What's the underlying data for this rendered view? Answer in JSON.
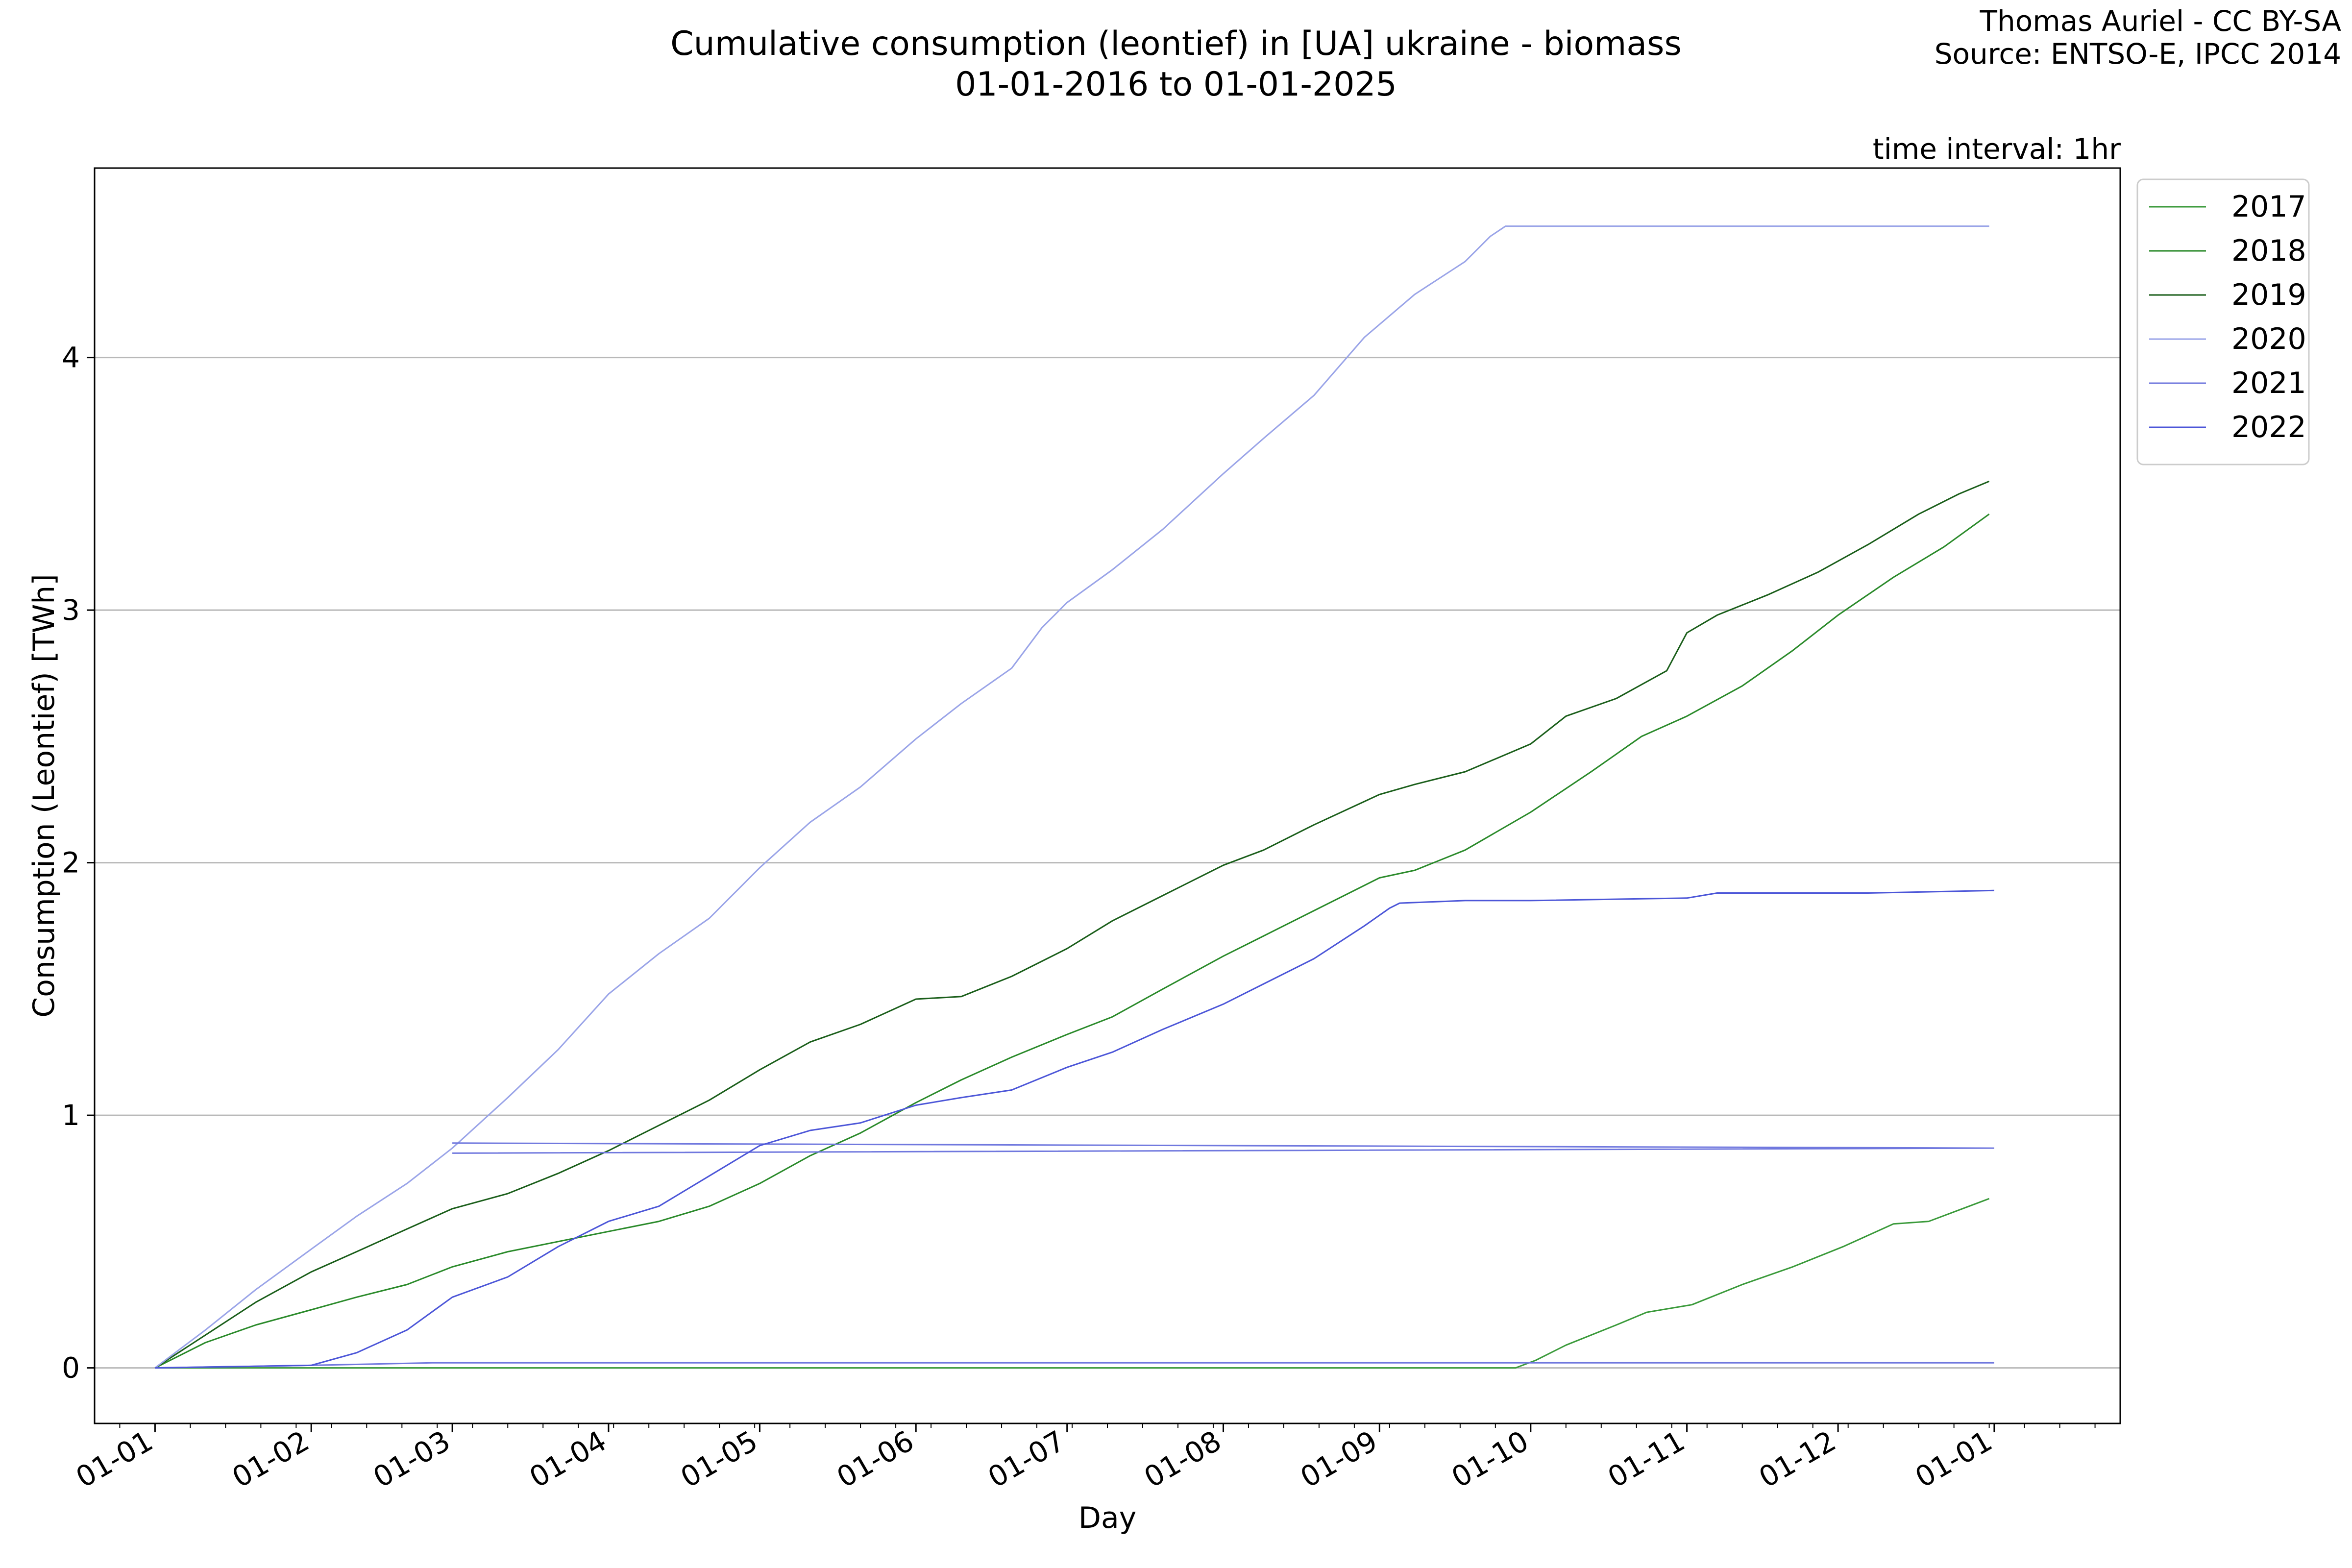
{
  "header": {
    "title": "Cumulative consumption (leontief) in [UA] ukraine - biomass",
    "subtitle": "01-01-2016 to 01-01-2025",
    "credit": "Thomas Auriel - CC BY-SA",
    "source": "Source: ENTSO-E, IPCC 2014",
    "interval": "time interval: 1hr"
  },
  "chart_data": {
    "type": "line",
    "xlabel": "Day",
    "ylabel": "Consumption (Leontief) [TWh]",
    "x_unit": "day_of_year",
    "xlim": [
      -12,
      390
    ],
    "ylim": [
      -0.22,
      4.75
    ],
    "grid": "horizontal",
    "legend_position": "outside-top-right",
    "x_ticks": [
      {
        "label": "01-01",
        "value": 0
      },
      {
        "label": "01-02",
        "value": 31
      },
      {
        "label": "01-03",
        "value": 59
      },
      {
        "label": "01-04",
        "value": 90
      },
      {
        "label": "01-05",
        "value": 120
      },
      {
        "label": "01-06",
        "value": 151
      },
      {
        "label": "01-07",
        "value": 181
      },
      {
        "label": "01-08",
        "value": 212
      },
      {
        "label": "01-09",
        "value": 243
      },
      {
        "label": "01-10",
        "value": 273
      },
      {
        "label": "01-11",
        "value": 304
      },
      {
        "label": "01-12",
        "value": 334
      },
      {
        "label": "01-01",
        "value": 365
      }
    ],
    "y_ticks": [
      0,
      1,
      2,
      3,
      4
    ],
    "series": [
      {
        "name": "2017",
        "color": "#3a9a3a",
        "points": [
          [
            0,
            0
          ],
          [
            270,
            0
          ],
          [
            274,
            0.03
          ],
          [
            280,
            0.09
          ],
          [
            290,
            0.17
          ],
          [
            296,
            0.22
          ],
          [
            305,
            0.25
          ],
          [
            315,
            0.33
          ],
          [
            325,
            0.4
          ],
          [
            335,
            0.48
          ],
          [
            345,
            0.57
          ],
          [
            352,
            0.58
          ],
          [
            360,
            0.64
          ],
          [
            364,
            0.67
          ]
        ]
      },
      {
        "name": "2018",
        "color": "#2a8a2a",
        "points": [
          [
            0,
            0
          ],
          [
            10,
            0.1
          ],
          [
            20,
            0.17
          ],
          [
            31,
            0.23
          ],
          [
            40,
            0.28
          ],
          [
            50,
            0.33
          ],
          [
            59,
            0.4
          ],
          [
            70,
            0.46
          ],
          [
            80,
            0.5
          ],
          [
            90,
            0.54
          ],
          [
            100,
            0.58
          ],
          [
            110,
            0.64
          ],
          [
            120,
            0.73
          ],
          [
            130,
            0.84
          ],
          [
            140,
            0.93
          ],
          [
            151,
            1.05
          ],
          [
            160,
            1.14
          ],
          [
            170,
            1.23
          ],
          [
            181,
            1.32
          ],
          [
            190,
            1.39
          ],
          [
            200,
            1.5
          ],
          [
            212,
            1.63
          ],
          [
            220,
            1.71
          ],
          [
            230,
            1.81
          ],
          [
            243,
            1.94
          ],
          [
            250,
            1.97
          ],
          [
            260,
            2.05
          ],
          [
            273,
            2.2
          ],
          [
            285,
            2.36
          ],
          [
            295,
            2.5
          ],
          [
            304,
            2.58
          ],
          [
            315,
            2.7
          ],
          [
            325,
            2.84
          ],
          [
            334,
            2.98
          ],
          [
            345,
            3.13
          ],
          [
            355,
            3.25
          ],
          [
            364,
            3.38
          ]
        ]
      },
      {
        "name": "2019",
        "color": "#1a5e1a",
        "points": [
          [
            0,
            0
          ],
          [
            10,
            0.13
          ],
          [
            20,
            0.26
          ],
          [
            31,
            0.38
          ],
          [
            40,
            0.46
          ],
          [
            50,
            0.55
          ],
          [
            59,
            0.63
          ],
          [
            70,
            0.69
          ],
          [
            80,
            0.77
          ],
          [
            90,
            0.86
          ],
          [
            100,
            0.96
          ],
          [
            110,
            1.06
          ],
          [
            120,
            1.18
          ],
          [
            130,
            1.29
          ],
          [
            140,
            1.36
          ],
          [
            151,
            1.46
          ],
          [
            160,
            1.47
          ],
          [
            170,
            1.55
          ],
          [
            181,
            1.66
          ],
          [
            190,
            1.77
          ],
          [
            200,
            1.87
          ],
          [
            212,
            1.99
          ],
          [
            220,
            2.05
          ],
          [
            230,
            2.15
          ],
          [
            243,
            2.27
          ],
          [
            250,
            2.31
          ],
          [
            260,
            2.36
          ],
          [
            273,
            2.47
          ],
          [
            280,
            2.58
          ],
          [
            290,
            2.65
          ],
          [
            300,
            2.76
          ],
          [
            304,
            2.91
          ],
          [
            310,
            2.98
          ],
          [
            320,
            3.06
          ],
          [
            330,
            3.15
          ],
          [
            340,
            3.26
          ],
          [
            350,
            3.38
          ],
          [
            358,
            3.46
          ],
          [
            364,
            3.51
          ]
        ]
      },
      {
        "name": "2020",
        "color": "#9aa4e8",
        "points": [
          [
            0,
            0
          ],
          [
            10,
            0.15
          ],
          [
            20,
            0.31
          ],
          [
            31,
            0.47
          ],
          [
            40,
            0.6
          ],
          [
            50,
            0.73
          ],
          [
            59,
            0.87
          ],
          [
            70,
            1.07
          ],
          [
            80,
            1.26
          ],
          [
            90,
            1.48
          ],
          [
            100,
            1.64
          ],
          [
            110,
            1.78
          ],
          [
            120,
            1.98
          ],
          [
            130,
            2.16
          ],
          [
            140,
            2.3
          ],
          [
            151,
            2.49
          ],
          [
            160,
            2.63
          ],
          [
            170,
            2.77
          ],
          [
            176,
            2.93
          ],
          [
            181,
            3.03
          ],
          [
            190,
            3.16
          ],
          [
            200,
            3.32
          ],
          [
            212,
            3.54
          ],
          [
            220,
            3.68
          ],
          [
            230,
            3.85
          ],
          [
            240,
            4.08
          ],
          [
            250,
            4.25
          ],
          [
            260,
            4.38
          ],
          [
            265,
            4.48
          ],
          [
            268,
            4.52
          ],
          [
            364,
            4.52
          ]
        ]
      },
      {
        "name": "2021",
        "color": "#7078de",
        "points": [
          [
            0,
            0
          ],
          [
            31,
            0.01
          ],
          [
            55,
            0.02
          ],
          [
            365,
            0.02
          ],
          [
            null,
            null
          ],
          [
            59,
            0.89
          ],
          [
            365,
            0.87
          ],
          [
            null,
            null
          ],
          [
            59,
            0.85
          ],
          [
            365,
            0.87
          ]
        ]
      },
      {
        "name": "2022",
        "color": "#4c56d8",
        "points": [
          [
            0,
            0
          ],
          [
            31,
            0.01
          ],
          [
            40,
            0.06
          ],
          [
            50,
            0.15
          ],
          [
            59,
            0.28
          ],
          [
            70,
            0.36
          ],
          [
            80,
            0.48
          ],
          [
            90,
            0.58
          ],
          [
            100,
            0.64
          ],
          [
            110,
            0.76
          ],
          [
            120,
            0.88
          ],
          [
            130,
            0.94
          ],
          [
            140,
            0.97
          ],
          [
            151,
            1.04
          ],
          [
            160,
            1.07
          ],
          [
            170,
            1.1
          ],
          [
            181,
            1.19
          ],
          [
            190,
            1.25
          ],
          [
            200,
            1.34
          ],
          [
            212,
            1.44
          ],
          [
            220,
            1.52
          ],
          [
            230,
            1.62
          ],
          [
            240,
            1.75
          ],
          [
            245,
            1.82
          ],
          [
            247,
            1.84
          ],
          [
            260,
            1.85
          ],
          [
            273,
            1.85
          ],
          [
            304,
            1.86
          ],
          [
            310,
            1.88
          ],
          [
            340,
            1.88
          ],
          [
            365,
            1.89
          ]
        ]
      }
    ]
  }
}
